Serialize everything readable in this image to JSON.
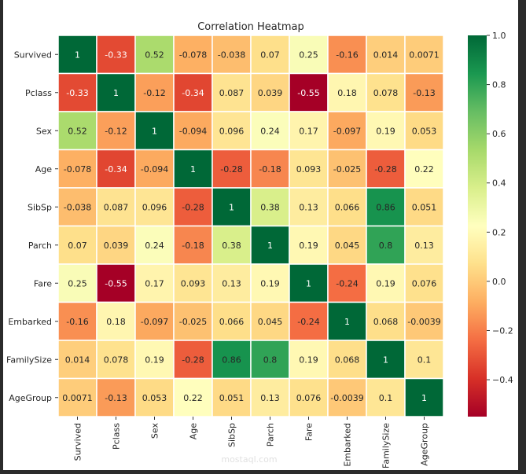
{
  "chart_data": {
    "type": "heatmap",
    "title": "Correlation Heatmap",
    "labels": [
      "Survived",
      "Pclass",
      "Sex",
      "Age",
      "SibSp",
      "Parch",
      "Fare",
      "Embarked",
      "FamilySize",
      "AgeGroup"
    ],
    "matrix": [
      [
        1,
        -0.33,
        0.52,
        -0.078,
        -0.038,
        0.07,
        0.25,
        -0.16,
        0.014,
        0.0071
      ],
      [
        -0.33,
        1,
        -0.12,
        -0.34,
        0.087,
        0.039,
        -0.55,
        0.18,
        0.078,
        -0.13
      ],
      [
        0.52,
        -0.12,
        1,
        -0.094,
        0.096,
        0.24,
        0.17,
        -0.097,
        0.19,
        0.053
      ],
      [
        -0.078,
        -0.34,
        -0.094,
        1,
        -0.28,
        -0.18,
        0.093,
        -0.025,
        -0.28,
        0.22
      ],
      [
        -0.038,
        0.087,
        0.096,
        -0.28,
        1,
        0.38,
        0.13,
        0.066,
        0.86,
        0.051
      ],
      [
        0.07,
        0.039,
        0.24,
        -0.18,
        0.38,
        1,
        0.19,
        0.045,
        0.8,
        0.13
      ],
      [
        0.25,
        -0.55,
        0.17,
        0.093,
        0.13,
        0.19,
        1,
        -0.24,
        0.19,
        0.076
      ],
      [
        -0.16,
        0.18,
        -0.097,
        -0.025,
        0.066,
        0.045,
        -0.24,
        1,
        0.068,
        -0.0039
      ],
      [
        0.014,
        0.078,
        0.19,
        -0.28,
        0.86,
        0.8,
        0.19,
        0.068,
        1,
        0.1
      ],
      [
        0.0071,
        -0.13,
        0.053,
        0.22,
        0.051,
        0.13,
        0.076,
        -0.0039,
        0.1,
        1
      ]
    ],
    "colormap": "RdYlGn",
    "vmin": -0.55,
    "vmax": 1.0,
    "colorbar_ticks": [
      "1.0",
      "0.8",
      "0.6",
      "0.4",
      "0.2",
      "0.0",
      "−0.2",
      "−0.4"
    ],
    "colorbar_tick_values": [
      1.0,
      0.8,
      0.6,
      0.4,
      0.2,
      0.0,
      -0.2,
      -0.4
    ],
    "annotations": true,
    "grid": false,
    "legend": "colorbar-right"
  },
  "watermark": "mostaql.com"
}
